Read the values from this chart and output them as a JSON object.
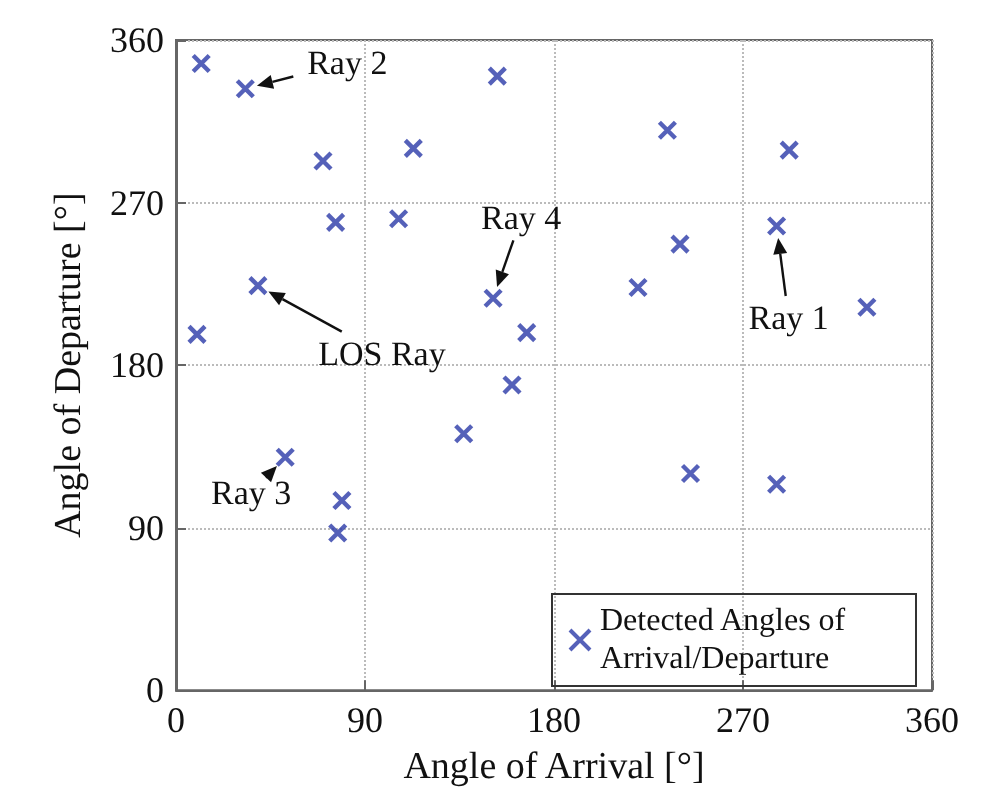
{
  "chart_data": {
    "type": "scatter",
    "xlabel": "Angle of Arrival [°]",
    "ylabel": "Angle of Departure [°]",
    "x": [
      12,
      33,
      70,
      113,
      153,
      234,
      292,
      76,
      106,
      286,
      240,
      39,
      151,
      220,
      167,
      10,
      329,
      160,
      137,
      52,
      79,
      77,
      245,
      286
    ],
    "series": [
      {
        "name": "Detected Angles of Arrival/Departure",
        "color": "#2b3aa8",
        "values": [
          347,
          333,
          293,
          300,
          340,
          310,
          299,
          259,
          261,
          257,
          247,
          224,
          217,
          223,
          198,
          197,
          212,
          169,
          142,
          129,
          105,
          87,
          120,
          114
        ]
      }
    ],
    "xlim": [
      0,
      360
    ],
    "ylim": [
      0,
      360
    ],
    "xticks": [
      0,
      90,
      180,
      270,
      360
    ],
    "yticks": [
      0,
      90,
      180,
      270,
      360
    ],
    "grid": true,
    "legend": "bottom right",
    "marker": "cross",
    "annotations": [
      {
        "text": "Ray 2",
        "x": 33,
        "y": 333
      },
      {
        "text": "LOS Ray",
        "x": 39,
        "y": 224
      },
      {
        "text": "Ray 4",
        "x": 151,
        "y": 217
      },
      {
        "text": "Ray 1",
        "x": 286,
        "y": 257
      },
      {
        "text": "Ray 3",
        "x": 52,
        "y": 129
      }
    ]
  }
}
